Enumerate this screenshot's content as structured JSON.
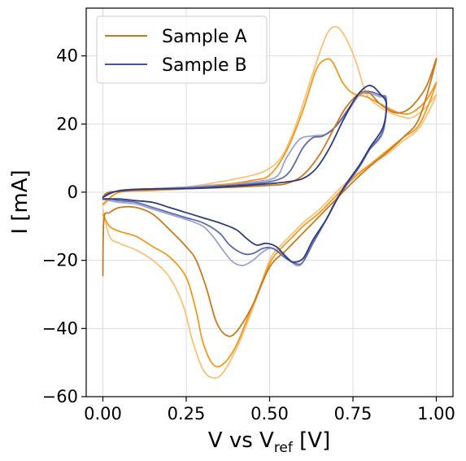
{
  "chart_data": {
    "type": "line",
    "title": "",
    "xlabel": {
      "main": "V vs V",
      "sub": "ref",
      "unit": " [V]"
    },
    "ylabel": "I [mA]",
    "xlim": [
      -0.05,
      1.05
    ],
    "ylim": [
      -60,
      54
    ],
    "xticks": [
      0.0,
      0.25,
      0.5,
      0.75,
      1.0
    ],
    "xtick_labels": [
      "0.00",
      "0.25",
      "0.50",
      "0.75",
      "1.00"
    ],
    "yticks": [
      -60,
      -40,
      -20,
      0,
      20,
      40
    ],
    "ytick_labels": [
      "−60",
      "−40",
      "−20",
      "0",
      "20",
      "40"
    ],
    "grid": true,
    "legend": {
      "placement": "top-left",
      "entries": [
        {
          "name": "Sample A",
          "color": "#c97a1a"
        },
        {
          "name": "Sample B",
          "color": "#4a5494"
        }
      ]
    },
    "series": [
      {
        "name": "Sample A",
        "cycle": 1,
        "color": "#c97a1a",
        "points": [
          [
            0.0,
            -24.5
          ],
          [
            0.003,
            -8.0
          ],
          [
            0.02,
            -6.0
          ],
          [
            0.05,
            -4.5
          ],
          [
            0.1,
            -4.5
          ],
          [
            0.15,
            -6.5
          ],
          [
            0.2,
            -11.0
          ],
          [
            0.25,
            -16.0
          ],
          [
            0.28,
            -20.0
          ],
          [
            0.31,
            -28.0
          ],
          [
            0.34,
            -38.0
          ],
          [
            0.37,
            -42.0
          ],
          [
            0.4,
            -41.0
          ],
          [
            0.45,
            -33.0
          ],
          [
            0.5,
            -22.0
          ],
          [
            0.55,
            -17.0
          ],
          [
            0.6,
            -12.0
          ],
          [
            0.65,
            -7.0
          ],
          [
            0.7,
            -2.0
          ],
          [
            0.75,
            3.0
          ],
          [
            0.8,
            7.5
          ],
          [
            0.85,
            11.5
          ],
          [
            0.9,
            16.0
          ],
          [
            0.95,
            22.0
          ],
          [
            1.0,
            39.0
          ],
          [
            0.97,
            31.0
          ],
          [
            0.93,
            25.5
          ],
          [
            0.9,
            23.5
          ],
          [
            0.87,
            23.5
          ],
          [
            0.83,
            26.0
          ],
          [
            0.8,
            29.0
          ],
          [
            0.77,
            29.0
          ],
          [
            0.73,
            25.0
          ],
          [
            0.7,
            20.0
          ],
          [
            0.65,
            11.0
          ],
          [
            0.6,
            5.0
          ],
          [
            0.55,
            2.5
          ],
          [
            0.5,
            2.0
          ],
          [
            0.4,
            1.5
          ],
          [
            0.3,
            1.2
          ],
          [
            0.2,
            1.0
          ],
          [
            0.1,
            0.5
          ],
          [
            0.02,
            0.0
          ],
          [
            0.0,
            -1.5
          ]
        ]
      },
      {
        "name": "Sample A",
        "cycle": 2,
        "color": "#f29a1c",
        "points": [
          [
            0.0,
            -6.5
          ],
          [
            0.02,
            -10.0
          ],
          [
            0.05,
            -11.5
          ],
          [
            0.1,
            -13.0
          ],
          [
            0.15,
            -16.0
          ],
          [
            0.2,
            -19.0
          ],
          [
            0.25,
            -25.0
          ],
          [
            0.28,
            -35.0
          ],
          [
            0.3,
            -44.0
          ],
          [
            0.33,
            -50.5
          ],
          [
            0.36,
            -50.5
          ],
          [
            0.4,
            -45.0
          ],
          [
            0.45,
            -33.0
          ],
          [
            0.5,
            -21.0
          ],
          [
            0.53,
            -17.0
          ],
          [
            0.57,
            -13.0
          ],
          [
            0.6,
            -10.0
          ],
          [
            0.65,
            -6.0
          ],
          [
            0.7,
            -1.0
          ],
          [
            0.75,
            4.0
          ],
          [
            0.8,
            8.0
          ],
          [
            0.85,
            12.0
          ],
          [
            0.9,
            16.0
          ],
          [
            0.95,
            20.0
          ],
          [
            1.0,
            32.0
          ],
          [
            0.97,
            27.0
          ],
          [
            0.93,
            23.5
          ],
          [
            0.9,
            23.0
          ],
          [
            0.87,
            24.0
          ],
          [
            0.83,
            26.0
          ],
          [
            0.79,
            28.0
          ],
          [
            0.75,
            29.0
          ],
          [
            0.72,
            32.0
          ],
          [
            0.69,
            38.0
          ],
          [
            0.67,
            39.0
          ],
          [
            0.64,
            36.0
          ],
          [
            0.6,
            24.0
          ],
          [
            0.55,
            12.0
          ],
          [
            0.5,
            5.0
          ],
          [
            0.45,
            3.5
          ],
          [
            0.35,
            2.0
          ],
          [
            0.25,
            1.0
          ],
          [
            0.15,
            0.5
          ],
          [
            0.05,
            0.0
          ],
          [
            0.0,
            -3.5
          ]
        ]
      },
      {
        "name": "Sample A",
        "cycle": 3,
        "color": "#fbc278",
        "points": [
          [
            0.0,
            -5.0
          ],
          [
            0.02,
            -13.0
          ],
          [
            0.05,
            -15.0
          ],
          [
            0.1,
            -17.0
          ],
          [
            0.15,
            -20.0
          ],
          [
            0.2,
            -25.0
          ],
          [
            0.24,
            -33.0
          ],
          [
            0.27,
            -44.0
          ],
          [
            0.3,
            -52.0
          ],
          [
            0.33,
            -54.5
          ],
          [
            0.36,
            -53.0
          ],
          [
            0.4,
            -46.0
          ],
          [
            0.45,
            -34.0
          ],
          [
            0.5,
            -20.0
          ],
          [
            0.53,
            -16.0
          ],
          [
            0.57,
            -12.0
          ],
          [
            0.6,
            -9.0
          ],
          [
            0.65,
            -5.0
          ],
          [
            0.7,
            0.0
          ],
          [
            0.75,
            4.5
          ],
          [
            0.8,
            8.0
          ],
          [
            0.85,
            11.0
          ],
          [
            0.9,
            15.0
          ],
          [
            0.95,
            19.0
          ],
          [
            1.0,
            28.5
          ],
          [
            0.97,
            25.0
          ],
          [
            0.93,
            22.0
          ],
          [
            0.9,
            22.0
          ],
          [
            0.87,
            23.0
          ],
          [
            0.83,
            25.0
          ],
          [
            0.79,
            29.0
          ],
          [
            0.76,
            38.0
          ],
          [
            0.73,
            45.0
          ],
          [
            0.7,
            48.5
          ],
          [
            0.67,
            46.0
          ],
          [
            0.63,
            35.0
          ],
          [
            0.58,
            20.0
          ],
          [
            0.54,
            11.0
          ],
          [
            0.5,
            7.0
          ],
          [
            0.45,
            5.0
          ],
          [
            0.35,
            3.0
          ],
          [
            0.25,
            1.5
          ],
          [
            0.15,
            0.5
          ],
          [
            0.05,
            0.0
          ],
          [
            0.0,
            -4.0
          ]
        ]
      },
      {
        "name": "Sample B",
        "cycle": 1,
        "color": "#2f3a84",
        "points": [
          [
            0.0,
            -2.0
          ],
          [
            0.02,
            -2.0
          ],
          [
            0.05,
            -2.0
          ],
          [
            0.1,
            -2.5
          ],
          [
            0.15,
            -3.0
          ],
          [
            0.2,
            -4.5
          ],
          [
            0.25,
            -6.0
          ],
          [
            0.3,
            -7.5
          ],
          [
            0.35,
            -9.0
          ],
          [
            0.4,
            -11.0
          ],
          [
            0.43,
            -13.5
          ],
          [
            0.46,
            -15.5
          ],
          [
            0.49,
            -15.0
          ],
          [
            0.52,
            -16.0
          ],
          [
            0.55,
            -19.0
          ],
          [
            0.57,
            -20.5
          ],
          [
            0.6,
            -19.5
          ],
          [
            0.63,
            -14.0
          ],
          [
            0.67,
            -8.0
          ],
          [
            0.7,
            -2.5
          ],
          [
            0.73,
            2.5
          ],
          [
            0.77,
            8.0
          ],
          [
            0.8,
            13.0
          ],
          [
            0.84,
            19.0
          ],
          [
            0.85,
            26.0
          ],
          [
            0.83,
            29.0
          ],
          [
            0.81,
            31.0
          ],
          [
            0.79,
            31.0
          ],
          [
            0.76,
            28.0
          ],
          [
            0.72,
            21.0
          ],
          [
            0.68,
            13.0
          ],
          [
            0.64,
            7.0
          ],
          [
            0.6,
            4.0
          ],
          [
            0.55,
            3.0
          ],
          [
            0.5,
            2.5
          ],
          [
            0.4,
            1.8
          ],
          [
            0.3,
            1.2
          ],
          [
            0.2,
            1.0
          ],
          [
            0.1,
            0.8
          ],
          [
            0.03,
            0.0
          ],
          [
            0.0,
            -1.5
          ]
        ]
      },
      {
        "name": "Sample B",
        "cycle": 2,
        "color": "#5e6aae",
        "points": [
          [
            0.0,
            -2.0
          ],
          [
            0.02,
            -2.0
          ],
          [
            0.05,
            -2.5
          ],
          [
            0.1,
            -3.0
          ],
          [
            0.15,
            -4.5
          ],
          [
            0.2,
            -6.0
          ],
          [
            0.25,
            -7.5
          ],
          [
            0.3,
            -9.0
          ],
          [
            0.35,
            -12.0
          ],
          [
            0.38,
            -15.5
          ],
          [
            0.42,
            -18.0
          ],
          [
            0.45,
            -18.0
          ],
          [
            0.48,
            -16.5
          ],
          [
            0.51,
            -16.5
          ],
          [
            0.55,
            -19.5
          ],
          [
            0.58,
            -21.0
          ],
          [
            0.6,
            -20.5
          ],
          [
            0.63,
            -15.0
          ],
          [
            0.67,
            -8.0
          ],
          [
            0.7,
            -2.5
          ],
          [
            0.73,
            2.0
          ],
          [
            0.77,
            7.5
          ],
          [
            0.8,
            12.5
          ],
          [
            0.84,
            18.0
          ],
          [
            0.85,
            27.0
          ],
          [
            0.83,
            28.5
          ],
          [
            0.8,
            29.5
          ],
          [
            0.77,
            29.0
          ],
          [
            0.74,
            25.0
          ],
          [
            0.7,
            19.5
          ],
          [
            0.66,
            16.5
          ],
          [
            0.63,
            16.0
          ],
          [
            0.6,
            13.0
          ],
          [
            0.56,
            6.0
          ],
          [
            0.52,
            3.5
          ],
          [
            0.45,
            2.5
          ],
          [
            0.35,
            1.8
          ],
          [
            0.25,
            1.2
          ],
          [
            0.15,
            1.0
          ],
          [
            0.05,
            0.5
          ],
          [
            0.0,
            -1.5
          ]
        ]
      },
      {
        "name": "Sample B",
        "cycle": 3,
        "color": "#9ba3cf",
        "points": [
          [
            0.0,
            -2.0
          ],
          [
            0.02,
            -2.5
          ],
          [
            0.05,
            -3.0
          ],
          [
            0.1,
            -3.5
          ],
          [
            0.15,
            -5.0
          ],
          [
            0.2,
            -6.5
          ],
          [
            0.25,
            -8.0
          ],
          [
            0.3,
            -10.0
          ],
          [
            0.33,
            -13.0
          ],
          [
            0.36,
            -17.0
          ],
          [
            0.39,
            -20.5
          ],
          [
            0.42,
            -21.5
          ],
          [
            0.45,
            -20.0
          ],
          [
            0.48,
            -17.5
          ],
          [
            0.51,
            -16.5
          ],
          [
            0.55,
            -19.0
          ],
          [
            0.58,
            -21.5
          ],
          [
            0.6,
            -20.5
          ],
          [
            0.63,
            -15.0
          ],
          [
            0.67,
            -8.0
          ],
          [
            0.7,
            -2.0
          ],
          [
            0.73,
            2.5
          ],
          [
            0.77,
            8.0
          ],
          [
            0.8,
            12.5
          ],
          [
            0.84,
            17.5
          ],
          [
            0.85,
            27.5
          ],
          [
            0.83,
            28.0
          ],
          [
            0.8,
            29.0
          ],
          [
            0.77,
            28.5
          ],
          [
            0.74,
            24.5
          ],
          [
            0.7,
            19.5
          ],
          [
            0.67,
            17.0
          ],
          [
            0.63,
            16.5
          ],
          [
            0.59,
            15.5
          ],
          [
            0.55,
            10.0
          ],
          [
            0.52,
            4.5
          ],
          [
            0.45,
            3.0
          ],
          [
            0.35,
            2.2
          ],
          [
            0.25,
            1.5
          ],
          [
            0.15,
            1.0
          ],
          [
            0.05,
            0.5
          ],
          [
            0.0,
            -1.5
          ]
        ]
      }
    ]
  }
}
